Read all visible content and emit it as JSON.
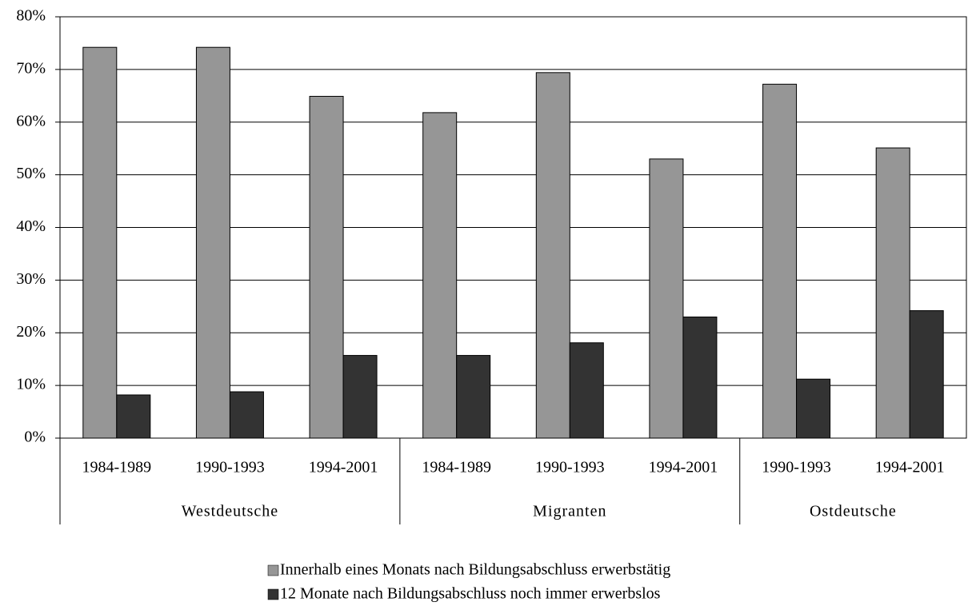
{
  "chart_data": {
    "type": "bar",
    "groups": [
      {
        "name": "Westdeutsche",
        "categories": [
          "1984-1989",
          "1990-1993",
          "1994-2001"
        ]
      },
      {
        "name": "Migranten",
        "categories": [
          "1984-1989",
          "1990-1993",
          "1994-2001"
        ]
      },
      {
        "name": "Ostdeutsche",
        "categories": [
          "1990-1993",
          "1994-2001"
        ]
      }
    ],
    "series": [
      {
        "name": "Innerhalb eines Monats nach Bildungsabschluss erwerbstätig",
        "color": "#969696",
        "values": [
          74.2,
          74.2,
          64.9,
          61.8,
          69.4,
          53,
          67.2,
          55.1
        ]
      },
      {
        "name": "12 Monate nach Bildungsabschluss noch immer erwerbslos",
        "color": "#333333",
        "values": [
          8.2,
          8.8,
          15.7,
          15.7,
          18.1,
          23,
          11.2,
          24.2
        ]
      }
    ],
    "ylim": [
      0,
      80
    ],
    "yticks": [
      {
        "value": 0,
        "label": "0%"
      },
      {
        "value": 10,
        "label": "10%"
      },
      {
        "value": 20,
        "label": "20%"
      },
      {
        "value": 30,
        "label": "30%"
      },
      {
        "value": 40,
        "label": "40%"
      },
      {
        "value": 50,
        "label": "50%"
      },
      {
        "value": 60,
        "label": "60%"
      },
      {
        "value": 70,
        "label": "70%"
      },
      {
        "value": 80,
        "label": "80%"
      }
    ],
    "grid": true,
    "legend": "bottom"
  }
}
